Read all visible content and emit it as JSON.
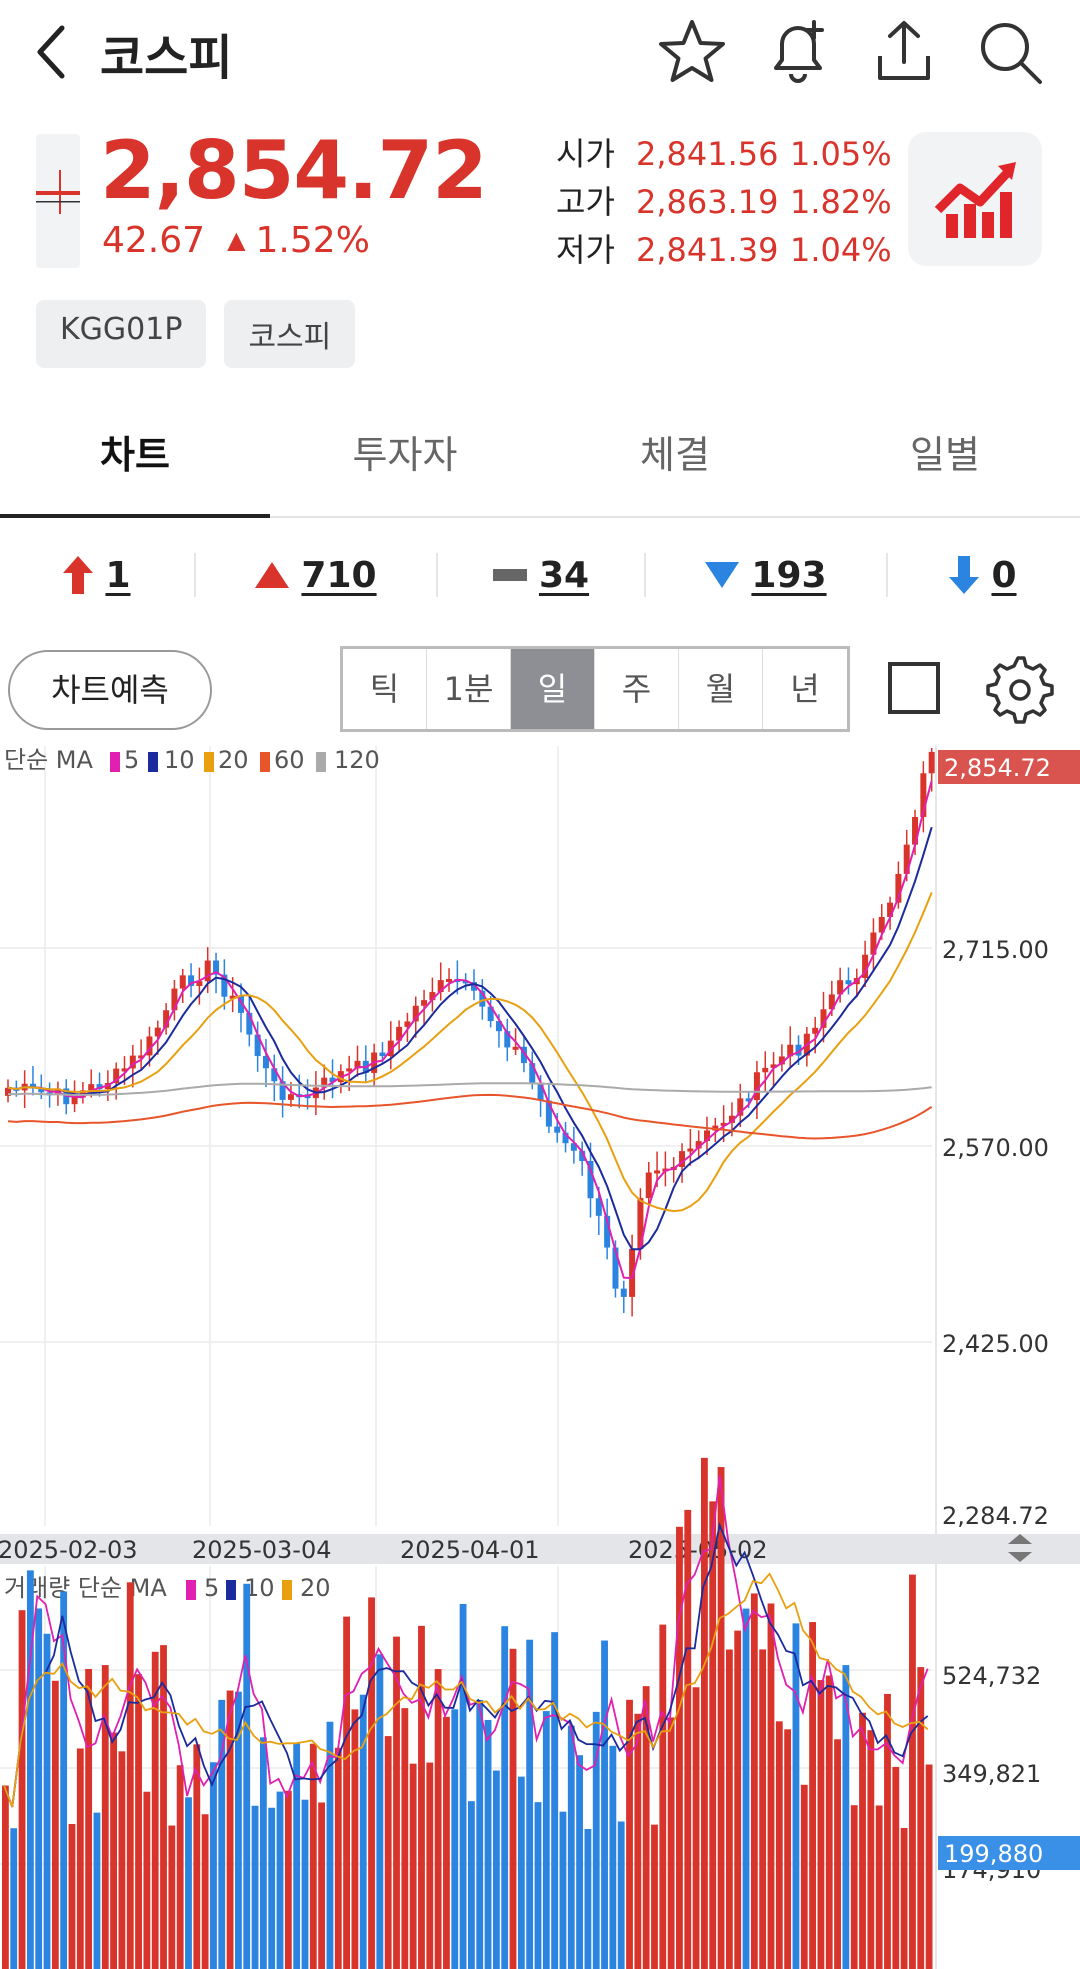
{
  "header": {
    "title": "코스피",
    "icons": [
      "back-icon",
      "star-icon",
      "bell-plus-icon",
      "share-icon",
      "search-icon"
    ]
  },
  "quote": {
    "price": "2,854.72",
    "change": "42.67",
    "change_pct": "1.52%",
    "open_label": "시가",
    "open": "2,841.56",
    "open_pct": "1.05%",
    "high_label": "고가",
    "high": "2,863.19",
    "high_pct": "1.82%",
    "low_label": "저가",
    "low": "2,841.39",
    "low_pct": "1.04%",
    "up_color": "#d9342b"
  },
  "tags": [
    "KGG01P",
    "코스피"
  ],
  "tabs": [
    "차트",
    "투자자",
    "체결",
    "일별"
  ],
  "active_tab": "차트",
  "breadth": {
    "limit_up": "1",
    "up": "710",
    "flat": "34",
    "down": "193",
    "limit_down": "0"
  },
  "toolbar": {
    "predict_label": "차트예측",
    "periods": [
      "틱",
      "1분",
      "일",
      "주",
      "월",
      "년"
    ],
    "selected_period": "일"
  },
  "chart_data": [
    {
      "type": "candlestick",
      "legend_prefix": "단순 MA",
      "ma_series": [
        {
          "name": "5",
          "color": "#e020b0"
        },
        {
          "name": "10",
          "color": "#1b2a9c"
        },
        {
          "name": "20",
          "color": "#e8a010"
        },
        {
          "name": "60",
          "color": "#e8552a"
        },
        {
          "name": "120",
          "color": "#aaaaaa"
        }
      ],
      "ylim": [
        2284.72,
        2890
      ],
      "y_ticks": [
        "2,715.00",
        "2,570.00",
        "2,425.00",
        "2,284.72"
      ],
      "current_label": "2,854.72",
      "x_ticks": [
        "2025-02-03",
        "2025-03-04",
        "2025-04-01",
        "2025-05-02"
      ],
      "up_color": "#d9342b",
      "down_color": "#2b84e0"
    },
    {
      "type": "bar",
      "legend_prefix": "거래량 단순 MA",
      "ma_series": [
        {
          "name": "5",
          "color": "#e020b0"
        },
        {
          "name": "10",
          "color": "#1b2a9c"
        },
        {
          "name": "20",
          "color": "#e8a010"
        }
      ],
      "y_ticks": [
        "524,732",
        "349,821",
        "174,910"
      ],
      "current_label": "199,880"
    }
  ]
}
